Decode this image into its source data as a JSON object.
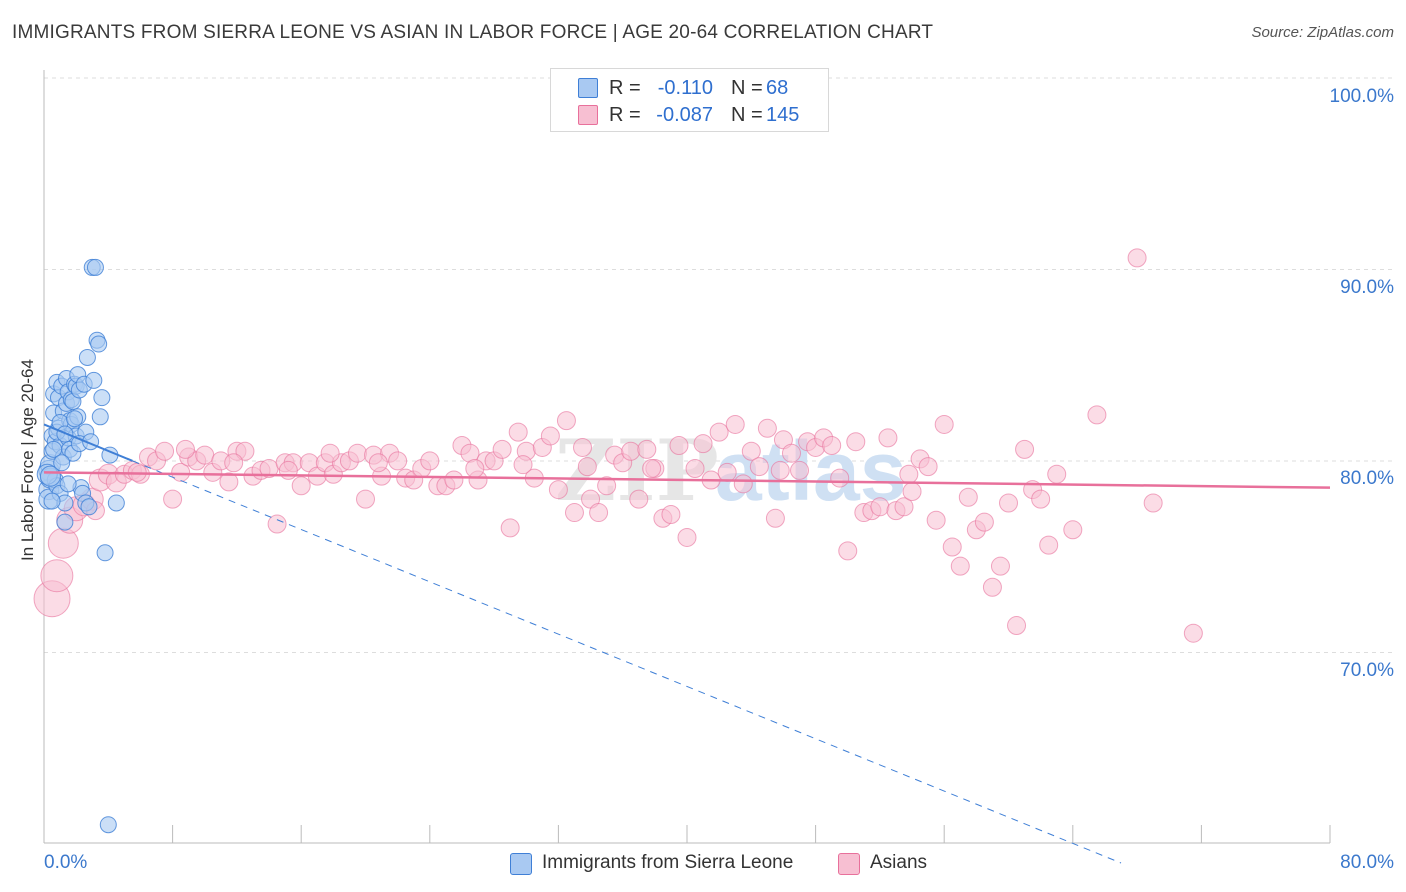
{
  "header": {
    "title": "IMMIGRANTS FROM SIERRA LEONE VS ASIAN IN LABOR FORCE | AGE 20-64 CORRELATION CHART",
    "source": "Source: ZipAtlas.com"
  },
  "legend": {
    "rows": [
      {
        "r_label": "R =",
        "r_value": "-0.110",
        "n_label": "N =",
        "n_value": "68"
      },
      {
        "r_label": "R =",
        "r_value": "-0.087",
        "n_label": "N =",
        "n_value": "145"
      }
    ]
  },
  "bottom_legend": {
    "items": [
      {
        "label": "Immigrants from Sierra Leone"
      },
      {
        "label": "Asians"
      }
    ]
  },
  "axes": {
    "ylabel": "In Labor Force | Age 20-64",
    "y_ticks": [
      "100.0%",
      "90.0%",
      "80.0%",
      "70.0%"
    ],
    "x_min_label": "0.0%",
    "x_max_label": "80.0%"
  },
  "colors": {
    "blue": "#3f7fd6",
    "blue_fill": "#a9c9f2",
    "pink": "#e8709b",
    "pink_fill": "#f7bfd2",
    "axis_tick": "#3b78cc"
  },
  "chart_data": {
    "type": "scatter",
    "xlabel": "",
    "ylabel": "In Labor Force | Age 20-64",
    "xlim": [
      0,
      80
    ],
    "ylim": [
      60,
      102
    ],
    "grid": true,
    "legend_position": "top-center",
    "series": [
      {
        "name": "Immigrants from Sierra Leone",
        "points": [
          [
            0.3,
            80.5
          ],
          [
            0.3,
            79.5
          ],
          [
            0.3,
            79.0
          ],
          [
            0.4,
            80.8
          ],
          [
            0.4,
            80.1
          ],
          [
            0.5,
            82.3
          ],
          [
            0.5,
            81.5
          ],
          [
            0.6,
            84.5
          ],
          [
            0.6,
            83.5
          ],
          [
            0.7,
            82.0
          ],
          [
            0.7,
            80.0
          ],
          [
            0.8,
            79.7
          ],
          [
            0.8,
            85.1
          ],
          [
            0.9,
            84.3
          ],
          [
            0.9,
            82.7
          ],
          [
            1.0,
            81.8
          ],
          [
            1.0,
            79.3
          ],
          [
            1.1,
            84.9
          ],
          [
            1.2,
            83.6
          ],
          [
            1.2,
            81.2
          ],
          [
            1.3,
            78.8
          ],
          [
            1.3,
            77.8
          ],
          [
            1.4,
            85.3
          ],
          [
            1.4,
            84.0
          ],
          [
            1.5,
            84.6
          ],
          [
            1.5,
            82.2
          ],
          [
            1.6,
            83.1
          ],
          [
            1.6,
            81.6
          ],
          [
            1.7,
            84.2
          ],
          [
            1.7,
            82.9
          ],
          [
            1.8,
            84.1
          ],
          [
            1.8,
            81.4
          ],
          [
            1.9,
            85.0
          ],
          [
            2.0,
            84.9
          ],
          [
            2.0,
            82.3
          ],
          [
            2.1,
            83.3
          ],
          [
            2.1,
            85.5
          ],
          [
            2.2,
            84.7
          ],
          [
            2.3,
            79.6
          ],
          [
            2.4,
            79.3
          ],
          [
            2.5,
            85.0
          ],
          [
            2.6,
            82.5
          ],
          [
            2.6,
            78.8
          ],
          [
            2.7,
            86.4
          ],
          [
            2.8,
            78.6
          ],
          [
            3.0,
            91.1
          ],
          [
            3.2,
            91.1
          ],
          [
            3.1,
            85.2
          ],
          [
            3.3,
            87.3
          ],
          [
            3.4,
            87.1
          ],
          [
            3.5,
            83.3
          ],
          [
            3.6,
            84.3
          ],
          [
            3.8,
            76.2
          ],
          [
            4.0,
            62.0
          ],
          [
            4.1,
            81.3
          ],
          [
            4.5,
            78.8
          ],
          [
            0.2,
            80.3
          ],
          [
            0.4,
            80.2
          ],
          [
            0.5,
            78.9
          ],
          [
            0.6,
            81.6
          ],
          [
            0.8,
            82.5
          ],
          [
            1.0,
            83.0
          ],
          [
            1.1,
            80.9
          ],
          [
            1.3,
            82.4
          ],
          [
            1.5,
            79.8
          ],
          [
            1.9,
            83.2
          ],
          [
            2.2,
            81.9
          ],
          [
            2.9,
            82.0
          ]
        ]
      },
      {
        "name": "Asians",
        "points": [
          [
            0.5,
            73.8
          ],
          [
            0.8,
            75.0
          ],
          [
            1.2,
            76.7
          ],
          [
            1.6,
            77.9
          ],
          [
            2.0,
            78.5
          ],
          [
            2.5,
            78.7
          ],
          [
            3.0,
            79.0
          ],
          [
            3.5,
            80.0
          ],
          [
            4.0,
            80.3
          ],
          [
            4.5,
            79.9
          ],
          [
            5.0,
            80.3
          ],
          [
            5.5,
            80.5
          ],
          [
            6.0,
            80.3
          ],
          [
            6.5,
            81.2
          ],
          [
            7.0,
            81.0
          ],
          [
            7.5,
            81.5
          ],
          [
            8.0,
            79.0
          ],
          [
            8.5,
            80.4
          ],
          [
            9.0,
            81.2
          ],
          [
            9.5,
            81.0
          ],
          [
            10.0,
            81.3
          ],
          [
            10.5,
            80.4
          ],
          [
            11.0,
            81.0
          ],
          [
            11.5,
            79.9
          ],
          [
            12.0,
            81.5
          ],
          [
            12.5,
            81.5
          ],
          [
            13.0,
            80.2
          ],
          [
            13.5,
            80.5
          ],
          [
            14.0,
            80.6
          ],
          [
            14.5,
            77.7
          ],
          [
            15.0,
            80.9
          ],
          [
            15.5,
            80.9
          ],
          [
            16.0,
            79.7
          ],
          [
            16.5,
            80.9
          ],
          [
            17.0,
            80.2
          ],
          [
            17.5,
            80.9
          ],
          [
            18.0,
            80.3
          ],
          [
            18.5,
            80.9
          ],
          [
            19.0,
            81.0
          ],
          [
            19.5,
            81.4
          ],
          [
            20.0,
            79.0
          ],
          [
            20.5,
            81.3
          ],
          [
            21.0,
            80.2
          ],
          [
            21.5,
            81.4
          ],
          [
            22.0,
            81.0
          ],
          [
            22.5,
            80.1
          ],
          [
            23.0,
            80.0
          ],
          [
            23.5,
            80.6
          ],
          [
            24.0,
            81.0
          ],
          [
            24.5,
            79.7
          ],
          [
            25.0,
            79.7
          ],
          [
            25.5,
            80.0
          ],
          [
            26.0,
            81.8
          ],
          [
            26.5,
            81.4
          ],
          [
            27.0,
            80.0
          ],
          [
            27.5,
            81.0
          ],
          [
            28.0,
            81.0
          ],
          [
            28.5,
            81.6
          ],
          [
            29.0,
            77.5
          ],
          [
            29.5,
            82.5
          ],
          [
            30.0,
            81.5
          ],
          [
            30.5,
            80.1
          ],
          [
            31.0,
            81.7
          ],
          [
            31.5,
            82.3
          ],
          [
            32.0,
            79.5
          ],
          [
            32.5,
            83.1
          ],
          [
            33.0,
            78.3
          ],
          [
            33.5,
            81.7
          ],
          [
            34.0,
            79.0
          ],
          [
            34.5,
            78.3
          ],
          [
            35.0,
            79.7
          ],
          [
            35.5,
            81.3
          ],
          [
            36.0,
            80.9
          ],
          [
            36.5,
            81.5
          ],
          [
            37.0,
            79.0
          ],
          [
            37.5,
            81.6
          ],
          [
            38.0,
            80.6
          ],
          [
            38.5,
            78.0
          ],
          [
            39.0,
            78.2
          ],
          [
            39.5,
            81.8
          ],
          [
            40.0,
            77.0
          ],
          [
            40.5,
            80.6
          ],
          [
            41.0,
            81.9
          ],
          [
            41.5,
            80.0
          ],
          [
            42.0,
            82.5
          ],
          [
            42.5,
            80.4
          ],
          [
            43.0,
            82.9
          ],
          [
            43.5,
            79.8
          ],
          [
            44.0,
            81.5
          ],
          [
            44.5,
            80.7
          ],
          [
            45.0,
            82.7
          ],
          [
            45.5,
            78.0
          ],
          [
            46.0,
            82.1
          ],
          [
            46.5,
            81.4
          ],
          [
            47.0,
            80.5
          ],
          [
            47.5,
            82.0
          ],
          [
            48.0,
            81.7
          ],
          [
            48.5,
            82.2
          ],
          [
            49.0,
            81.8
          ],
          [
            49.5,
            80.1
          ],
          [
            50.0,
            76.3
          ],
          [
            50.5,
            82.0
          ],
          [
            51.0,
            78.3
          ],
          [
            51.5,
            78.4
          ],
          [
            52.0,
            78.6
          ],
          [
            52.5,
            82.2
          ],
          [
            53.0,
            78.4
          ],
          [
            53.5,
            78.6
          ],
          [
            54.0,
            79.4
          ],
          [
            54.5,
            81.1
          ],
          [
            55.0,
            80.7
          ],
          [
            55.5,
            77.9
          ],
          [
            56.0,
            82.9
          ],
          [
            56.5,
            76.5
          ],
          [
            57.0,
            75.5
          ],
          [
            57.5,
            79.1
          ],
          [
            58.0,
            77.4
          ],
          [
            58.5,
            77.8
          ],
          [
            59.0,
            74.4
          ],
          [
            59.5,
            75.5
          ],
          [
            60.0,
            78.8
          ],
          [
            60.5,
            72.4
          ],
          [
            61.0,
            81.6
          ],
          [
            61.5,
            79.5
          ],
          [
            62.0,
            79.0
          ],
          [
            62.5,
            76.6
          ],
          [
            63.0,
            80.3
          ],
          [
            64.0,
            77.4
          ],
          [
            65.5,
            83.4
          ],
          [
            68.0,
            91.6
          ],
          [
            69.0,
            78.8
          ],
          [
            71.5,
            72.0
          ],
          [
            3.2,
            78.4
          ],
          [
            5.8,
            80.4
          ],
          [
            8.8,
            81.6
          ],
          [
            11.8,
            80.9
          ],
          [
            15.2,
            80.5
          ],
          [
            17.8,
            81.4
          ],
          [
            20.8,
            80.9
          ],
          [
            26.8,
            80.6
          ],
          [
            29.8,
            80.8
          ],
          [
            33.8,
            80.7
          ],
          [
            37.8,
            80.6
          ],
          [
            45.8,
            80.5
          ],
          [
            53.8,
            80.3
          ]
        ]
      }
    ],
    "trend_lines": [
      {
        "series": "Immigrants from Sierra Leone",
        "x": [
          0,
          5.5
        ],
        "y": [
          82.9,
          81.0
        ]
      },
      {
        "series": "Immigrants from Sierra Leone",
        "x": [
          5.5,
          67
        ],
        "y": [
          81.0,
          60.0
        ],
        "style": "dashed"
      },
      {
        "series": "Asians",
        "x": [
          0,
          80
        ],
        "y": [
          80.4,
          79.6
        ]
      }
    ],
    "y_tick_values": [
      100,
      90,
      80,
      70
    ],
    "x_tick_values": [
      0,
      8,
      16,
      24,
      32,
      40,
      48,
      56,
      64,
      72,
      80
    ]
  }
}
